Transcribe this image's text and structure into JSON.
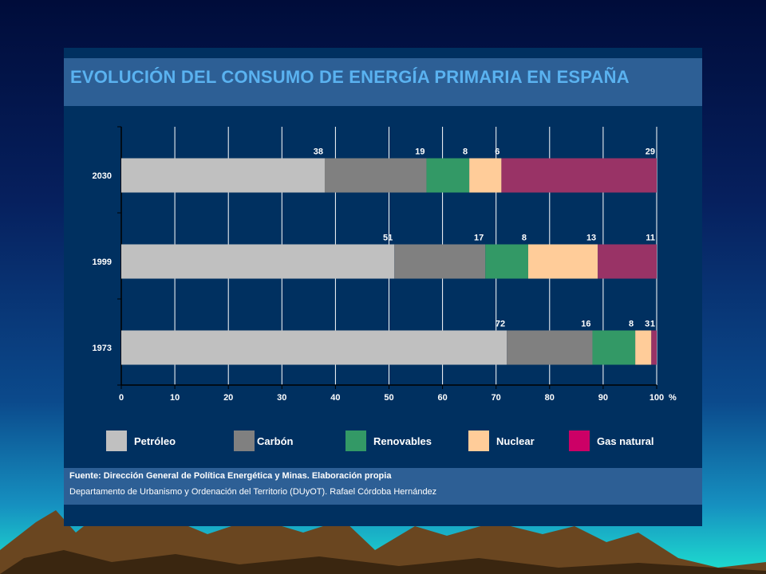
{
  "title": "EVOLUCIÓN DEL CONSUMO DE ENERGÍA PRIMARIA EN ESPAÑA",
  "footer": {
    "source": "Fuente: Dirección General de Política Energética y Minas.  Elaboración propia",
    "credit": "Departamento de Urbanismo y Ordenación del Territorio (DUyOT). Rafael Córdoba Hernández"
  },
  "colors": {
    "Petróleo": "#c0c0c0",
    "Carbón": "#808080",
    "Renovables": "#339966",
    "Nuclear": "#ffcc99",
    "Gas natural": "#993366",
    "legend_gas_natural": "#cc0066"
  },
  "chart_data": {
    "type": "bar",
    "orientation": "horizontal",
    "stacked": true,
    "categories": [
      "2030",
      "1999",
      "1973"
    ],
    "series": [
      {
        "name": "Petróleo",
        "values": [
          38,
          51,
          72
        ]
      },
      {
        "name": "Carbón",
        "values": [
          19,
          17,
          16
        ]
      },
      {
        "name": "Renovables",
        "values": [
          8,
          8,
          8
        ]
      },
      {
        "name": "Nuclear",
        "values": [
          6,
          13,
          3
        ]
      },
      {
        "name": "Gas natural",
        "values": [
          29,
          11,
          1
        ]
      }
    ],
    "xlim": [
      0,
      100
    ],
    "xticks": [
      "0",
      "10",
      "20",
      "30",
      "40",
      "50",
      "60",
      "70",
      "80",
      "90",
      "100"
    ],
    "xunit": "%",
    "grid": "vertical",
    "legend_position": "bottom"
  }
}
